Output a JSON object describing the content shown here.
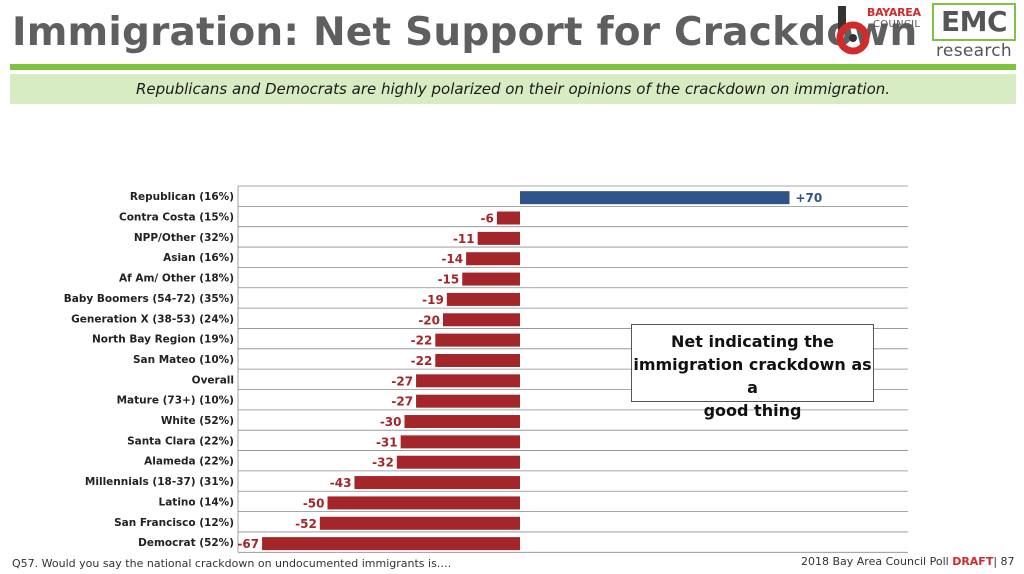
{
  "header": {
    "title": "Immigration: Net Support for Crackdown",
    "subtitle": "Republicans and Democrats are highly polarized on their opinions of the crackdown on immigration."
  },
  "logos": {
    "bay_area_council": {
      "line1": "BAYAREA",
      "line2": "COUNCIL",
      "color": "#d12a2a"
    },
    "emc_research": {
      "line1": "EMC",
      "line2": "research",
      "color": "#7ec242"
    }
  },
  "callout": {
    "line1": "Net indicating the",
    "line2": "immigration crackdown as a",
    "line3": "good thing"
  },
  "footer": {
    "question": "Q57. Would you say the national crackdown on undocumented immigrants is….",
    "poll_prefix": "2018 Bay Area Council Poll ",
    "poll_draft": "DRAFT",
    "poll_suffix": "| 87"
  },
  "chart_data": {
    "type": "bar",
    "orientation": "horizontal",
    "title": "",
    "xlabel": "",
    "ylabel": "",
    "xlim": [
      -70,
      70
    ],
    "grid": true,
    "positive_color": "#2e5487",
    "negative_color": "#a3262a",
    "categories": [
      "Republican (16%)",
      "Contra Costa (15%)",
      "NPP/Other (32%)",
      "Asian (16%)",
      "Af Am/ Other (18%)",
      "Baby Boomers (54-72) (35%)",
      "Generation X (38-53) (24%)",
      "North Bay Region (19%)",
      "San Mateo (10%)",
      "Overall",
      "Mature (73+) (10%)",
      "White (52%)",
      "Santa Clara (22%)",
      "Alameda (22%)",
      "Millennials (18-37) (31%)",
      "Latino (14%)",
      "San Francisco (12%)",
      "Democrat (52%)"
    ],
    "values": [
      70,
      -6,
      -11,
      -14,
      -15,
      -19,
      -20,
      -22,
      -22,
      -27,
      -27,
      -30,
      -31,
      -32,
      -43,
      -50,
      -52,
      -67
    ],
    "data_labels": [
      "+70",
      "-6",
      "-11",
      "-14",
      "-15",
      "-19",
      "-20",
      "-22",
      "-22",
      "-27",
      "-27",
      "-30",
      "-31",
      "-32",
      "-43",
      "-50",
      "-52",
      "-67"
    ]
  }
}
